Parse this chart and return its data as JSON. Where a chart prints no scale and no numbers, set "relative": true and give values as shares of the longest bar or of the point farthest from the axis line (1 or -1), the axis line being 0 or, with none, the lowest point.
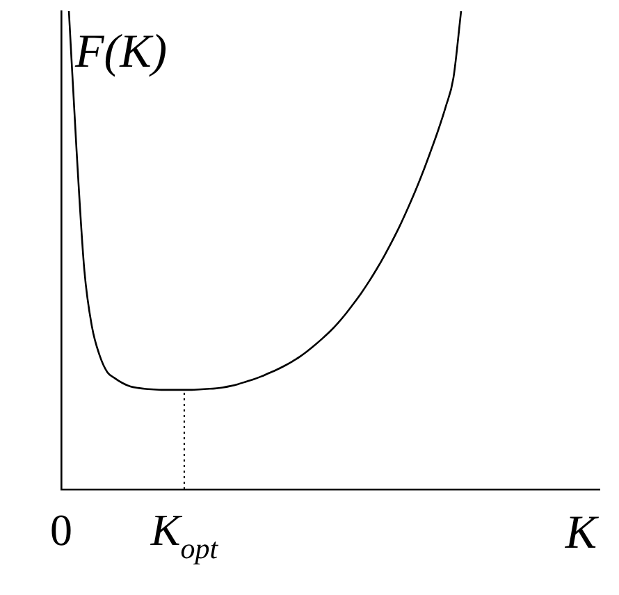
{
  "chart_data": {
    "type": "line",
    "relative": true,
    "xlabel": "K",
    "ylabel": "F(K)",
    "categories": [
      "0",
      null,
      null,
      null,
      null,
      null,
      null,
      null,
      null,
      null,
      null,
      null,
      null,
      null,
      null,
      null,
      "K$_{opt}$",
      null,
      null,
      null,
      null,
      null,
      null,
      null,
      null,
      null,
      null,
      null,
      null,
      null,
      null,
      null,
      null,
      null,
      null,
      null,
      null,
      null,
      null,
      null,
      null,
      null,
      null,
      null,
      null,
      null,
      null,
      null,
      null,
      null,
      null,
      null,
      null,
      null,
      null,
      null,
      null,
      null,
      null,
      null,
      null,
      null,
      null,
      null,
      null,
      null,
      null,
      null,
      null,
      null,
      null
    ],
    "series": [
      {
        "color": "#000000",
        "values": [
          null,
          1.0,
          0.708,
          0.46,
          0.34,
          0.28,
          0.245,
          0.232,
          0.222,
          0.215,
          0.212,
          0.21,
          0.209,
          0.208,
          0.208,
          0.208,
          0.208,
          0.208,
          0.209,
          0.21,
          0.211,
          0.213,
          0.216,
          0.22,
          0.225,
          0.23,
          0.236,
          0.243,
          0.25,
          0.258,
          0.267,
          0.277,
          0.289,
          0.302,
          0.316,
          0.331,
          0.348,
          0.367,
          0.388,
          0.41,
          0.434,
          0.46,
          0.488,
          0.518,
          0.55,
          0.585,
          0.622,
          0.662,
          0.705,
          0.75,
          0.8,
          0.86,
          1.0,
          null,
          null,
          null,
          null,
          null,
          null,
          null,
          null,
          null,
          null,
          null,
          null,
          null,
          null,
          null,
          null,
          null,
          null
        ]
      }
    ],
    "ref_lines": [
      {
        "axis": "x",
        "value": "K$_{opt}$",
        "line_style": "dotted",
        "color": "#000000"
      }
    ],
    "marker": "none",
    "line_style": "solid",
    "grid": false,
    "legend": false
  }
}
